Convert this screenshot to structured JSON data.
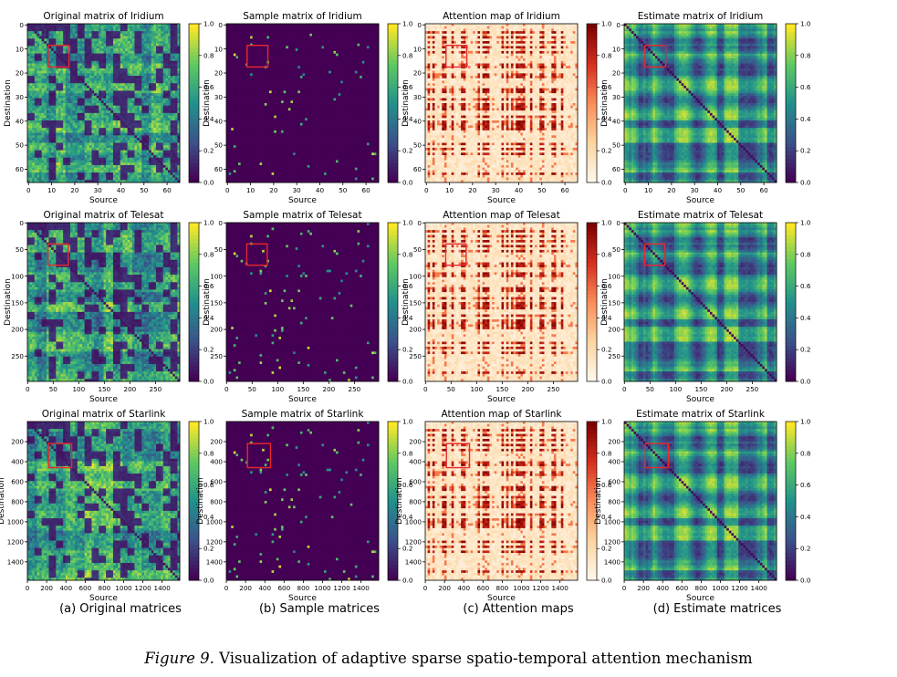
{
  "colormaps": {
    "viridis": [
      "#440154",
      "#3b528b",
      "#21918c",
      "#5ec962",
      "#fde725"
    ],
    "orrd": [
      "#fff7ec",
      "#fdd49e",
      "#fc8d59",
      "#d7301f",
      "#7f0000"
    ]
  },
  "highlight_color": "#e8282b",
  "chart_data": [
    {
      "type": "heatmap",
      "name": "orig-iridium",
      "title": "Original matrix of Iridium",
      "xlabel": "Source",
      "ylabel": "Destination",
      "size": 66,
      "xticks": [
        0,
        10,
        20,
        30,
        40,
        50,
        60
      ],
      "yticks": [
        0,
        10,
        20,
        30,
        40,
        50,
        60
      ],
      "cmap": "viridis",
      "colorbar_ticks": [
        "0.0",
        "0.2",
        "0.4",
        "0.6",
        "0.8",
        "1.0"
      ],
      "highlight": [
        9,
        9,
        18,
        18
      ]
    },
    {
      "type": "heatmap",
      "name": "sample-iridium",
      "title": "Sample matrix of Iridium",
      "xlabel": "Source",
      "ylabel": "Destination",
      "size": 66,
      "xticks": [
        0,
        10,
        20,
        30,
        40,
        50,
        60
      ],
      "yticks": [
        0,
        10,
        20,
        30,
        40,
        50,
        60
      ],
      "cmap": "viridis",
      "colorbar_ticks": [
        "0.0",
        "0.2",
        "0.4",
        "0.6",
        "0.8",
        "1.0"
      ],
      "highlight": [
        9,
        9,
        18,
        18
      ]
    },
    {
      "type": "heatmap",
      "name": "attn-iridium",
      "title": "Attention map of Iridium",
      "xlabel": "Source",
      "ylabel": "Destination",
      "size": 66,
      "xticks": [
        0,
        10,
        20,
        30,
        40,
        50,
        60
      ],
      "yticks": [
        0,
        10,
        20,
        30,
        40,
        50,
        60
      ],
      "cmap": "orrd",
      "colorbar_ticks": [
        "0.0",
        "0.2",
        "0.4",
        "0.6",
        "0.8",
        "1.0"
      ],
      "highlight": [
        9,
        9,
        18,
        18
      ]
    },
    {
      "type": "heatmap",
      "name": "est-iridium",
      "title": "Estimate matrix of Iridium",
      "xlabel": "Source",
      "ylabel": "Destination",
      "size": 66,
      "xticks": [
        0,
        10,
        20,
        30,
        40,
        50,
        60
      ],
      "yticks": [
        0,
        10,
        20,
        30,
        40,
        50,
        60
      ],
      "cmap": "viridis",
      "colorbar_ticks": [
        "0.0",
        "0.2",
        "0.4",
        "0.6",
        "0.8",
        "1.0"
      ],
      "highlight": [
        9,
        9,
        18,
        18
      ]
    },
    {
      "type": "heatmap",
      "name": "orig-telesat",
      "title": "Original matrix of Telesat",
      "xlabel": "Source",
      "ylabel": "Destination",
      "size": 298,
      "xticks": [
        0,
        50,
        100,
        150,
        200,
        250
      ],
      "yticks": [
        0,
        50,
        100,
        150,
        200,
        250
      ],
      "cmap": "viridis",
      "colorbar_ticks": [
        "0.0",
        "0.2",
        "0.4",
        "0.6",
        "0.8",
        "1.0"
      ],
      "highlight": [
        40,
        40,
        80,
        80
      ]
    },
    {
      "type": "heatmap",
      "name": "sample-telesat",
      "title": "Sample matrix of Telesat",
      "xlabel": "Source",
      "ylabel": "Destination",
      "size": 298,
      "xticks": [
        0,
        50,
        100,
        150,
        200,
        250
      ],
      "yticks": [
        0,
        50,
        100,
        150,
        200,
        250
      ],
      "cmap": "viridis",
      "colorbar_ticks": [
        "0.0",
        "0.2",
        "0.4",
        "0.6",
        "0.8",
        "1.0"
      ],
      "highlight": [
        40,
        40,
        80,
        80
      ]
    },
    {
      "type": "heatmap",
      "name": "attn-telesat",
      "title": "Attention map of Telesat",
      "xlabel": "Source",
      "ylabel": "Destination",
      "size": 298,
      "xticks": [
        0,
        50,
        100,
        150,
        200,
        250
      ],
      "yticks": [
        0,
        50,
        100,
        150,
        200,
        250
      ],
      "cmap": "orrd",
      "colorbar_ticks": [
        "0.0",
        "0.2",
        "0.4",
        "0.6",
        "0.8",
        "1.0"
      ],
      "highlight": [
        40,
        40,
        80,
        80
      ]
    },
    {
      "type": "heatmap",
      "name": "est-telesat",
      "title": "Estimate matrix of Telesat",
      "xlabel": "Source",
      "ylabel": "Destination",
      "size": 298,
      "xticks": [
        0,
        50,
        100,
        150,
        200,
        250
      ],
      "yticks": [
        0,
        50,
        100,
        150,
        200,
        250
      ],
      "cmap": "viridis",
      "colorbar_ticks": [
        "0.0",
        "0.2",
        "0.4",
        "0.6",
        "0.8",
        "1.0"
      ],
      "highlight": [
        40,
        40,
        80,
        80
      ]
    },
    {
      "type": "heatmap",
      "name": "orig-starlink",
      "title": "Original matrix of Starlink",
      "xlabel": "Source",
      "ylabel": "Destination",
      "size": 1584,
      "xticks": [
        0,
        200,
        400,
        600,
        800,
        1000,
        1200,
        1400
      ],
      "yticks": [
        200,
        400,
        600,
        800,
        1000,
        1200,
        1400
      ],
      "cmap": "viridis",
      "colorbar_ticks": [
        "0.0",
        "0.2",
        "0.4",
        "0.6",
        "0.8",
        "1.0"
      ],
      "highlight": [
        220,
        220,
        460,
        460
      ]
    },
    {
      "type": "heatmap",
      "name": "sample-starlink",
      "title": "Sample matrix of Starlink",
      "xlabel": "Source",
      "ylabel": "Destination",
      "size": 1584,
      "xticks": [
        0,
        200,
        400,
        600,
        800,
        1000,
        1200,
        1400
      ],
      "yticks": [
        200,
        400,
        600,
        800,
        1000,
        1200,
        1400
      ],
      "cmap": "viridis",
      "colorbar_ticks": [
        "0.0",
        "0.2",
        "0.4",
        "0.6",
        "0.8",
        "1.0"
      ],
      "highlight": [
        220,
        220,
        460,
        460
      ]
    },
    {
      "type": "heatmap",
      "name": "attn-starlink",
      "title": "Attention map of Starlink",
      "xlabel": "Source",
      "ylabel": "Destination",
      "size": 1584,
      "xticks": [
        0,
        200,
        400,
        600,
        800,
        1000,
        1200,
        1400
      ],
      "yticks": [
        200,
        400,
        600,
        800,
        1000,
        1200,
        1400
      ],
      "cmap": "orrd",
      "colorbar_ticks": [
        "0.0",
        "0.2",
        "0.4",
        "0.6",
        "0.8",
        "1.0"
      ],
      "highlight": [
        220,
        220,
        460,
        460
      ]
    },
    {
      "type": "heatmap",
      "name": "est-starlink",
      "title": "Estimate matrix of Starlink",
      "xlabel": "Source",
      "ylabel": "Destination",
      "size": 1584,
      "xticks": [
        0,
        200,
        400,
        600,
        800,
        1000,
        1200,
        1400
      ],
      "yticks": [
        200,
        400,
        600,
        800,
        1000,
        1200,
        1400
      ],
      "cmap": "viridis",
      "colorbar_ticks": [
        "0.0",
        "0.2",
        "0.4",
        "0.6",
        "0.8",
        "1.0"
      ],
      "highlight": [
        220,
        220,
        460,
        460
      ]
    }
  ],
  "column_labels": [
    "(a) Original matrices",
    "(b) Sample matrices",
    "(c) Attention maps",
    "(d) Estimate matrices"
  ],
  "caption": {
    "label": "Figure 9.",
    "text": "Visualization of adaptive sparse spatio-temporal attention mechanism"
  }
}
